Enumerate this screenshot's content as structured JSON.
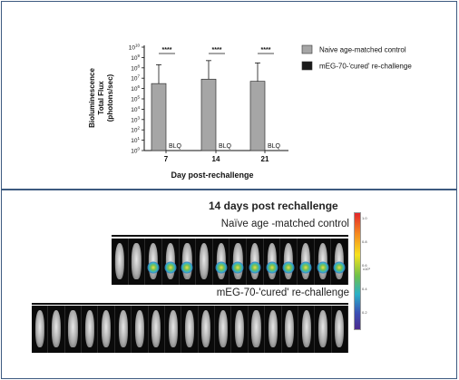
{
  "chart_data": {
    "type": "bar",
    "categories": [
      "7",
      "14",
      "21"
    ],
    "xlabel": "Day post-rechallenge",
    "ylabel_lines": [
      "Bioluminescence",
      "Total Flux",
      "(photons/sec)"
    ],
    "y_scale": "log",
    "ylim": [
      1,
      10000000000
    ],
    "y_ticks": [
      {
        "value": 1,
        "base": "10",
        "exp": "0"
      },
      {
        "value": 10,
        "base": "10",
        "exp": "1"
      },
      {
        "value": 100,
        "base": "10",
        "exp": "2"
      },
      {
        "value": 1000,
        "base": "10",
        "exp": "3"
      },
      {
        "value": 10000,
        "base": "10",
        "exp": "4"
      },
      {
        "value": 100000,
        "base": "10",
        "exp": "5"
      },
      {
        "value": 1000000,
        "base": "10",
        "exp": "6"
      },
      {
        "value": 10000000,
        "base": "10",
        "exp": "7"
      },
      {
        "value": 100000000,
        "base": "10",
        "exp": "8"
      },
      {
        "value": 1000000000,
        "base": "10",
        "exp": "9"
      },
      {
        "value": 10000000000,
        "base": "10",
        "exp": "10"
      }
    ],
    "series": [
      {
        "name": "Naive age-matched control",
        "color": "#a6a6a6",
        "values": [
          3000000,
          8000000,
          5000000
        ],
        "error_upper": [
          200000000,
          500000000,
          300000000
        ]
      },
      {
        "name": "mEG-70-'cured' re-challenge",
        "color": "#1a1a1a",
        "values": [
          null,
          null,
          null
        ],
        "point_labels": [
          "BLQ",
          "BLQ",
          "BLQ"
        ]
      }
    ],
    "significance": [
      "****",
      "****",
      "****"
    ],
    "legend_position": "right",
    "grid": false
  },
  "imaging": {
    "title": "14 days post rechallenge",
    "control_label": "Naïve age -matched control",
    "rechallenge_label": "mEG-70-'cured' re-challenge",
    "control_mice_count": 14,
    "rechallenge_mice_count": 19,
    "colorbar_ticks": [
      "1.0",
      "0.8",
      "0.6",
      "0.4",
      "0.2"
    ],
    "colorbar_unit": "x10⁹"
  }
}
